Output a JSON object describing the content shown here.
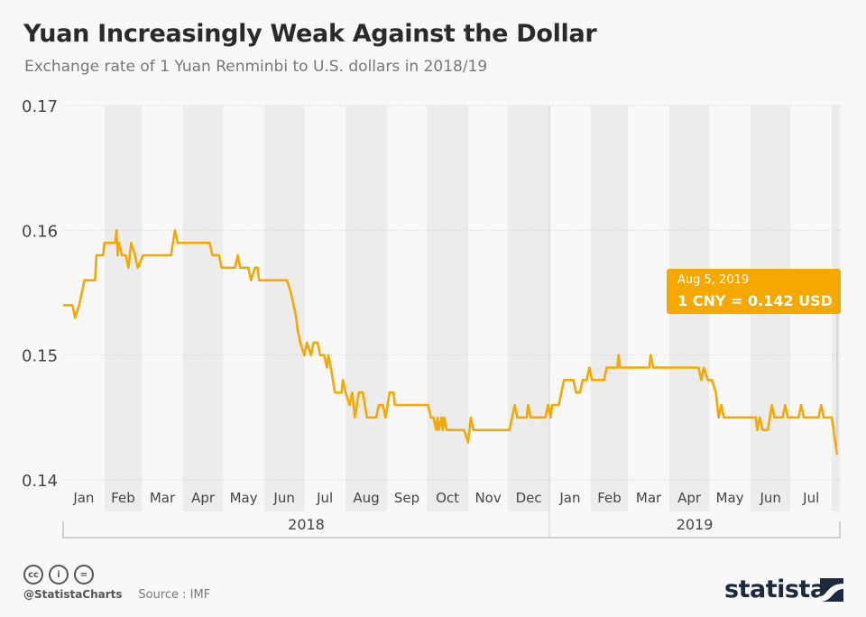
{
  "header": {
    "title": "Yuan Increasingly Weak Against the Dollar",
    "subtitle": "Exchange rate of 1 Yuan Renminbi to U.S. dollars in 2018/19"
  },
  "chart_data": {
    "type": "line",
    "title": "Yuan Increasingly Weak Against the Dollar",
    "subtitle": "Exchange rate of 1 Yuan Renminbi to U.S. dollars in 2018/19",
    "xlim": [
      "2018-01-01",
      "2019-08-05"
    ],
    "ylim": [
      0.14,
      0.17
    ],
    "y_ticks": [
      "0.14",
      "0.15",
      "0.16",
      "0.17"
    ],
    "y_tick_values": [
      0.14,
      0.15,
      0.16,
      0.17
    ],
    "month_labels": [
      "Jan",
      "Feb",
      "Mar",
      "Apr",
      "May",
      "Jun",
      "Jul",
      "Aug",
      "Sep",
      "Oct",
      "Nov",
      "Dec",
      "Jan",
      "Feb",
      "Mar",
      "Apr",
      "May",
      "Jun",
      "Jul"
    ],
    "month_starts": [
      "2018-01-01",
      "2018-02-01",
      "2018-03-01",
      "2018-04-01",
      "2018-05-01",
      "2018-06-01",
      "2018-07-01",
      "2018-08-01",
      "2018-09-01",
      "2018-10-01",
      "2018-11-01",
      "2018-12-01",
      "2019-01-01",
      "2019-02-01",
      "2019-03-01",
      "2019-04-01",
      "2019-05-01",
      "2019-06-01",
      "2019-07-01",
      "2019-08-01"
    ],
    "years": [
      "2018",
      "2019"
    ],
    "grid": true,
    "line_color": "#f5a800",
    "band_color": "#ececec",
    "annotation": {
      "date_label": "Aug 5, 2019",
      "value_label": "1 CNY = 0.142 USD"
    },
    "series": [
      {
        "points": [
          [
            "2018-01-01",
            0.154
          ],
          [
            "2018-01-08",
            0.154
          ],
          [
            "2018-01-10",
            0.153
          ],
          [
            "2018-01-13",
            0.154
          ],
          [
            "2018-01-15",
            0.155
          ],
          [
            "2018-01-17",
            0.156
          ],
          [
            "2018-01-25",
            0.156
          ],
          [
            "2018-01-26",
            0.158
          ],
          [
            "2018-01-31",
            0.158
          ],
          [
            "2018-02-01",
            0.159
          ],
          [
            "2018-02-09",
            0.159
          ],
          [
            "2018-02-10",
            0.16
          ],
          [
            "2018-02-11",
            0.158
          ],
          [
            "2018-02-12",
            0.159
          ],
          [
            "2018-02-14",
            0.158
          ],
          [
            "2018-02-17",
            0.158
          ],
          [
            "2018-02-19",
            0.157
          ],
          [
            "2018-02-21",
            0.159
          ],
          [
            "2018-02-24",
            0.158
          ],
          [
            "2018-02-26",
            0.157
          ],
          [
            "2018-03-02",
            0.158
          ],
          [
            "2018-03-23",
            0.158
          ],
          [
            "2018-03-26",
            0.16
          ],
          [
            "2018-03-28",
            0.159
          ],
          [
            "2018-04-21",
            0.159
          ],
          [
            "2018-04-23",
            0.158
          ],
          [
            "2018-04-28",
            0.158
          ],
          [
            "2018-04-30",
            0.157
          ],
          [
            "2018-05-10",
            0.157
          ],
          [
            "2018-05-12",
            0.158
          ],
          [
            "2018-05-14",
            0.157
          ],
          [
            "2018-05-20",
            0.157
          ],
          [
            "2018-05-22",
            0.156
          ],
          [
            "2018-05-25",
            0.157
          ],
          [
            "2018-05-27",
            0.157
          ],
          [
            "2018-05-28",
            0.156
          ],
          [
            "2018-06-18",
            0.156
          ],
          [
            "2018-06-21",
            0.155
          ],
          [
            "2018-06-23",
            0.154
          ],
          [
            "2018-06-25",
            0.153
          ],
          [
            "2018-06-26",
            0.152
          ],
          [
            "2018-06-28",
            0.151
          ],
          [
            "2018-07-01",
            0.15
          ],
          [
            "2018-07-03",
            0.151
          ],
          [
            "2018-07-06",
            0.15
          ],
          [
            "2018-07-08",
            0.151
          ],
          [
            "2018-07-11",
            0.151
          ],
          [
            "2018-07-13",
            0.15
          ],
          [
            "2018-07-16",
            0.15
          ],
          [
            "2018-07-18",
            0.149
          ],
          [
            "2018-07-19",
            0.15
          ],
          [
            "2018-07-21",
            0.149
          ],
          [
            "2018-07-24",
            0.147
          ],
          [
            "2018-07-29",
            0.147
          ],
          [
            "2018-07-30",
            0.148
          ],
          [
            "2018-08-01",
            0.147
          ],
          [
            "2018-08-04",
            0.146
          ],
          [
            "2018-08-06",
            0.147
          ],
          [
            "2018-08-08",
            0.145
          ],
          [
            "2018-08-11",
            0.147
          ],
          [
            "2018-08-14",
            0.147
          ],
          [
            "2018-08-17",
            0.145
          ],
          [
            "2018-08-24",
            0.145
          ],
          [
            "2018-08-26",
            0.146
          ],
          [
            "2018-08-29",
            0.146
          ],
          [
            "2018-08-31",
            0.145
          ],
          [
            "2018-09-03",
            0.147
          ],
          [
            "2018-09-06",
            0.147
          ],
          [
            "2018-09-07",
            0.146
          ],
          [
            "2018-10-02",
            0.146
          ],
          [
            "2018-10-04",
            0.145
          ],
          [
            "2018-10-06",
            0.145
          ],
          [
            "2018-10-08",
            0.144
          ],
          [
            "2018-10-09",
            0.145
          ],
          [
            "2018-10-10",
            0.144
          ],
          [
            "2018-10-12",
            0.145
          ],
          [
            "2018-10-13",
            0.144
          ],
          [
            "2018-10-14",
            0.145
          ],
          [
            "2018-10-16",
            0.144
          ],
          [
            "2018-10-29",
            0.144
          ],
          [
            "2018-11-01",
            0.143
          ],
          [
            "2018-11-03",
            0.145
          ],
          [
            "2018-11-05",
            0.144
          ],
          [
            "2018-12-02",
            0.144
          ],
          [
            "2018-12-06",
            0.146
          ],
          [
            "2018-12-08",
            0.145
          ],
          [
            "2018-12-15",
            0.145
          ],
          [
            "2018-12-16",
            0.146
          ],
          [
            "2018-12-18",
            0.145
          ],
          [
            "2018-12-29",
            0.145
          ],
          [
            "2018-12-31",
            0.146
          ],
          [
            "2019-01-02",
            0.145
          ],
          [
            "2019-01-03",
            0.146
          ],
          [
            "2019-01-08",
            0.146
          ],
          [
            "2019-01-12",
            0.148
          ],
          [
            "2019-01-19",
            0.148
          ],
          [
            "2019-01-21",
            0.147
          ],
          [
            "2019-01-24",
            0.147
          ],
          [
            "2019-01-26",
            0.148
          ],
          [
            "2019-01-29",
            0.148
          ],
          [
            "2019-01-31",
            0.149
          ],
          [
            "2019-02-02",
            0.148
          ],
          [
            "2019-02-11",
            0.148
          ],
          [
            "2019-02-13",
            0.149
          ],
          [
            "2019-02-21",
            0.149
          ],
          [
            "2019-02-22",
            0.15
          ],
          [
            "2019-02-23",
            0.149
          ],
          [
            "2019-03-17",
            0.149
          ],
          [
            "2019-03-18",
            0.15
          ],
          [
            "2019-03-20",
            0.149
          ],
          [
            "2019-04-23",
            0.149
          ],
          [
            "2019-04-25",
            0.148
          ],
          [
            "2019-04-27",
            0.149
          ],
          [
            "2019-04-30",
            0.148
          ],
          [
            "2019-05-03",
            0.148
          ],
          [
            "2019-05-06",
            0.147
          ],
          [
            "2019-05-08",
            0.145
          ],
          [
            "2019-05-10",
            0.146
          ],
          [
            "2019-05-12",
            0.145
          ],
          [
            "2019-06-05",
            0.145
          ],
          [
            "2019-06-06",
            0.144
          ],
          [
            "2019-06-08",
            0.145
          ],
          [
            "2019-06-10",
            0.144
          ],
          [
            "2019-06-14",
            0.144
          ],
          [
            "2019-06-17",
            0.146
          ],
          [
            "2019-06-19",
            0.145
          ],
          [
            "2019-06-25",
            0.145
          ],
          [
            "2019-06-27",
            0.146
          ],
          [
            "2019-06-29",
            0.145
          ],
          [
            "2019-07-07",
            0.145
          ],
          [
            "2019-07-09",
            0.146
          ],
          [
            "2019-07-11",
            0.145
          ],
          [
            "2019-07-22",
            0.145
          ],
          [
            "2019-07-24",
            0.146
          ],
          [
            "2019-07-26",
            0.145
          ],
          [
            "2019-08-01",
            0.145
          ],
          [
            "2019-08-05",
            0.142
          ]
        ]
      }
    ]
  },
  "footer": {
    "handle": "@StatistaCharts",
    "source": "Source : IMF",
    "logo": "statista",
    "license_icons": [
      "cc-icon",
      "by-icon",
      "nd-icon"
    ]
  }
}
